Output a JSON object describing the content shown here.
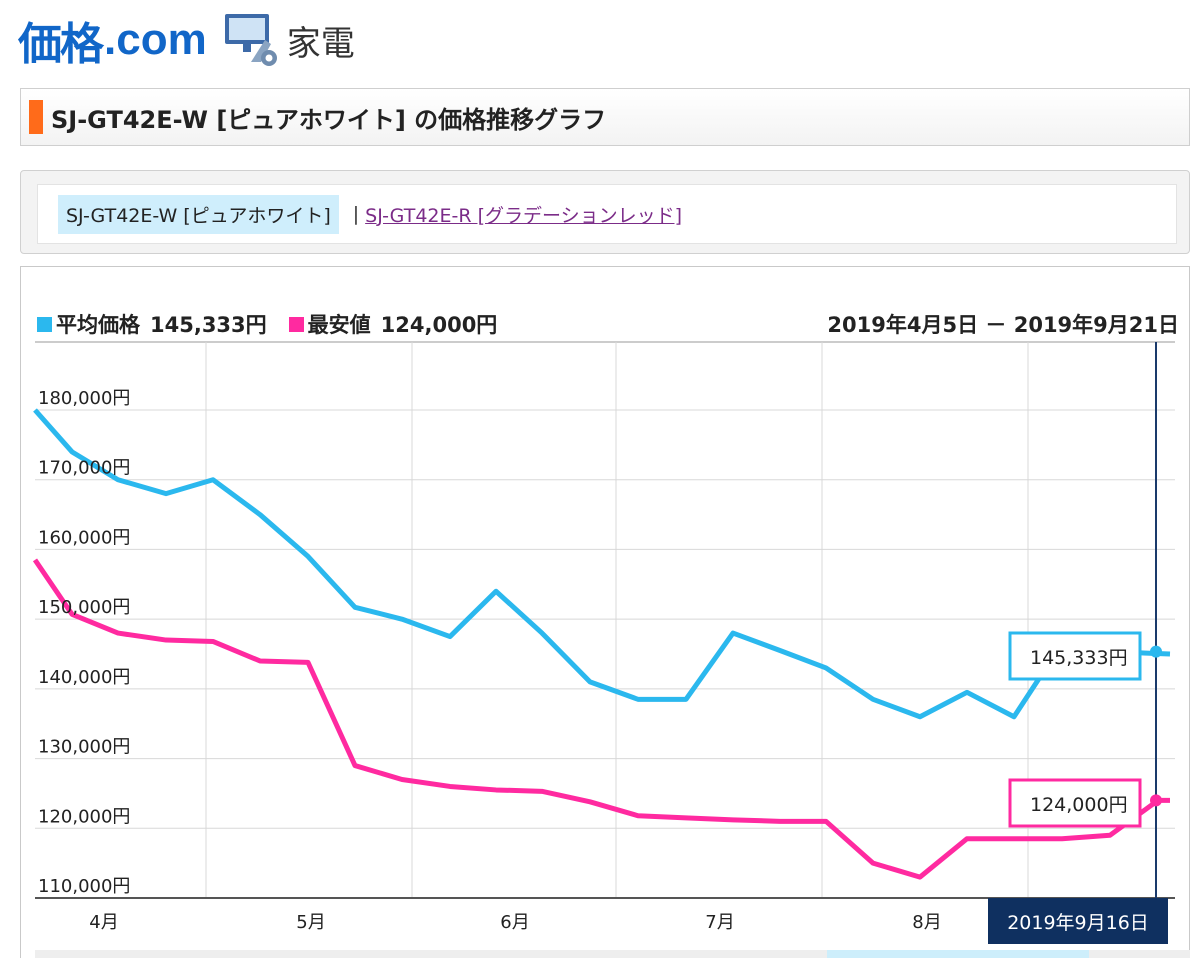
{
  "header": {
    "logo_kakaku": "価格",
    "logo_com": ".com",
    "category": "家電"
  },
  "page": {
    "title": "SJ-GT42E-W [ピュアホワイト] の価格推移グラフ"
  },
  "variants": {
    "current": "SJ-GT42E-W [ピュアホワイト]",
    "separator": "|",
    "other": "SJ-GT42E-R [グラデーションレッド]"
  },
  "colors": {
    "accent": "#ff6b1a",
    "average": "#2bb8ee",
    "lowest": "#ff2aa0",
    "marker_line": "#1a3a6b"
  },
  "chart_data": {
    "type": "line",
    "ylim": [
      110000,
      180000
    ],
    "yticks": [
      "180,000円",
      "170,000円",
      "160,000円",
      "150,000円",
      "140,000円",
      "130,000円",
      "120,000円",
      "110,000円"
    ],
    "yvalues": [
      180000,
      170000,
      160000,
      150000,
      140000,
      130000,
      120000,
      110000
    ],
    "month_labels": [
      "4月",
      "5月",
      "6月",
      "7月",
      "8月"
    ],
    "date_range": "2019年4月5日 － 2019年9月21日",
    "legend": [
      {
        "name": "平均価格",
        "value": "145,333円"
      },
      {
        "name": "最安値",
        "value": "124,000円"
      }
    ],
    "series": [
      {
        "name": "平均価格",
        "values": [
          180000,
          174000,
          170000,
          168000,
          170000,
          165000,
          159000,
          151700,
          150000,
          147500,
          154000,
          148000,
          141000,
          138500,
          138500,
          148000,
          145500,
          143000,
          138500,
          136000,
          139500,
          136000,
          146500,
          145333,
          145000
        ]
      },
      {
        "name": "最安値",
        "values": [
          158500,
          150700,
          148000,
          147000,
          146800,
          144000,
          143800,
          129000,
          127000,
          126000,
          125500,
          125300,
          123800,
          121800,
          121500,
          121200,
          121000,
          121000,
          115000,
          113000,
          118500,
          118500,
          118500,
          119000,
          124000,
          124000
        ]
      }
    ],
    "tooltips": {
      "average": "145,333円",
      "lowest": "124,000円",
      "date": "2019年9月16日"
    }
  }
}
